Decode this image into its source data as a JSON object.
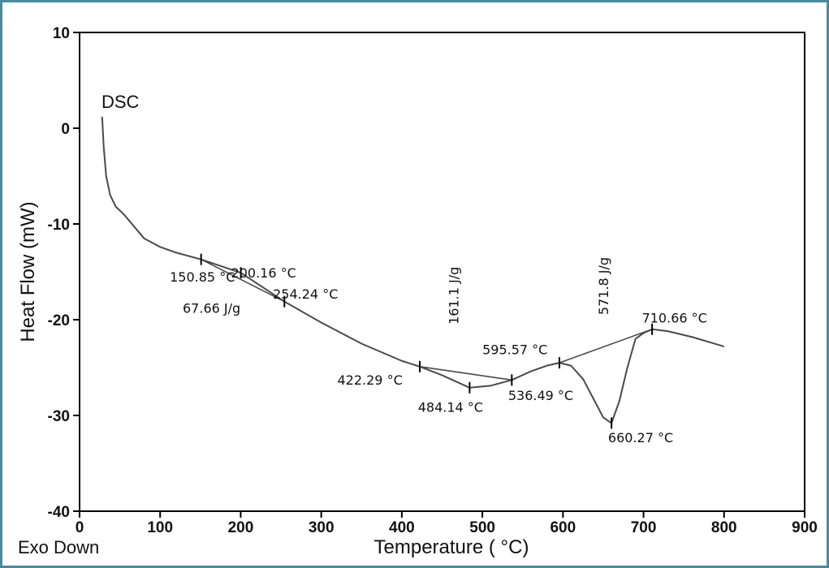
{
  "chart_data": {
    "type": "line",
    "series_label": "DSC",
    "xlabel": "Temperature ( °C)",
    "ylabel": "Heat Flow (mW)",
    "corner_note": "Exo Down",
    "xlim": [
      0,
      900
    ],
    "ylim": [
      -40,
      10
    ],
    "xticks": [
      "0",
      "100",
      "200",
      "300",
      "400",
      "500",
      "600",
      "700",
      "800",
      "900"
    ],
    "yticks": [
      "10",
      "0",
      "-10",
      "-20",
      "-30",
      "-40"
    ],
    "series": [
      {
        "x": [
          28,
          30,
          33,
          38,
          45,
          55,
          65,
          80,
          100,
          120,
          150.85,
          200.16,
          254.24,
          300,
          350,
          400,
          422.29,
          450,
          484.14,
          510,
          536.49,
          560,
          580,
          595.57,
          610,
          625,
          640,
          650,
          660.27,
          670,
          680,
          690,
          700,
          710.66,
          730,
          760,
          800
        ],
        "y": [
          1.2,
          -2,
          -5,
          -7,
          -8.2,
          -9,
          -10,
          -11.5,
          -12.4,
          -13,
          -13.7,
          -15.1,
          -18.1,
          -20.3,
          -22.5,
          -24.3,
          -24.9,
          -25.8,
          -27.1,
          -26.9,
          -26.3,
          -25.4,
          -24.8,
          -24.5,
          -24.8,
          -26.2,
          -28.6,
          -30.2,
          -30.8,
          -28.5,
          -25,
          -22,
          -21.4,
          -21.0,
          -21.2,
          -21.8,
          -22.8
        ]
      }
    ],
    "baselines": [
      {
        "x": [
          150.85,
          254.24
        ],
        "y": [
          -13.7,
          -18.1
        ]
      },
      {
        "x": [
          422.29,
          536.49
        ],
        "y": [
          -24.9,
          -26.3
        ]
      },
      {
        "x": [
          595.57,
          710.66
        ],
        "y": [
          -24.5,
          -21.0
        ]
      }
    ],
    "markers": [
      {
        "x": 150.85,
        "y": -13.7
      },
      {
        "x": 200.16,
        "y": -15.1
      },
      {
        "x": 254.24,
        "y": -18.1
      },
      {
        "x": 422.29,
        "y": -24.9
      },
      {
        "x": 484.14,
        "y": -27.1
      },
      {
        "x": 536.49,
        "y": -26.3
      },
      {
        "x": 595.57,
        "y": -24.5
      },
      {
        "x": 660.27,
        "y": -30.8
      },
      {
        "x": 710.66,
        "y": -21.0
      }
    ],
    "annotations": [
      {
        "text": "150.85 °C",
        "x": 112,
        "y": -16.0,
        "rotate": 0
      },
      {
        "text": "200.16 °C",
        "x": 188,
        "y": -15.6,
        "rotate": 0
      },
      {
        "text": "254.24 °C",
        "x": 240,
        "y": -17.8,
        "rotate": 0
      },
      {
        "text": "67.66  J/g",
        "x": 128,
        "y": -19.3,
        "rotate": 0
      },
      {
        "text": "161.1  J/g",
        "x": 470,
        "y": -20.5,
        "rotate": -90
      },
      {
        "text": "422.29 °C",
        "x": 320,
        "y": -26.8,
        "rotate": 0
      },
      {
        "text": "484.14 °C",
        "x": 420,
        "y": -29.6,
        "rotate": 0
      },
      {
        "text": "595.57 °C",
        "x": 500,
        "y": -23.6,
        "rotate": 0
      },
      {
        "text": "536.49 °C",
        "x": 532,
        "y": -28.4,
        "rotate": 0
      },
      {
        "text": "571.8  J/g",
        "x": 656,
        "y": -19.5,
        "rotate": -90
      },
      {
        "text": "710.66 °C",
        "x": 698,
        "y": -20.3,
        "rotate": 0
      },
      {
        "text": "660.27 °C",
        "x": 656,
        "y": -32.8,
        "rotate": 0
      }
    ]
  },
  "colors": {
    "curve": "#4a4a4a",
    "frame": "#4a8a9e",
    "axis": "#000000"
  }
}
